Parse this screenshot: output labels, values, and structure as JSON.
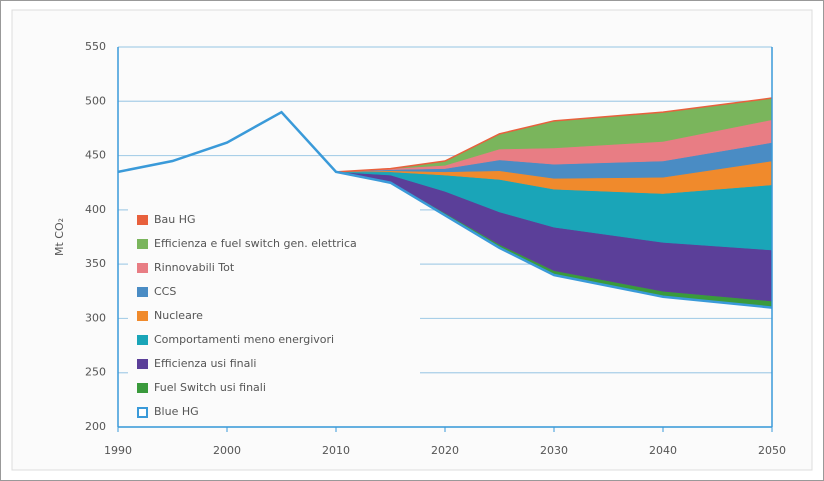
{
  "chart_data": {
    "type": "area",
    "y_label": "Mt CO₂",
    "x": [
      1990,
      1995,
      2000,
      2005,
      2010,
      2015,
      2020,
      2025,
      2030,
      2040,
      2050
    ],
    "xlim": [
      1990,
      2050
    ],
    "xticks": [
      1990,
      2000,
      2010,
      2020,
      2030,
      2040,
      2050
    ],
    "ylim": [
      200,
      550
    ],
    "yticks": [
      200,
      250,
      300,
      350,
      400,
      450,
      500,
      550
    ],
    "grid": true,
    "legend": "lower left",
    "series": [
      {
        "name": "Bau HG",
        "color": "#e8603c",
        "type": "line",
        "values": [
          null,
          null,
          null,
          null,
          435,
          438,
          445,
          470,
          482,
          490,
          503
        ]
      },
      {
        "name": "Efficienza e fuel switch gen. elettrica",
        "color": "#7ab55c",
        "type": "area",
        "values": [
          null,
          null,
          null,
          null,
          0,
          0,
          4,
          14,
          25,
          27,
          20
        ]
      },
      {
        "name": "Rinnovabili Tot",
        "color": "#e87d84",
        "type": "area",
        "values": [
          null,
          null,
          null,
          null,
          0,
          1,
          3,
          10,
          15,
          18,
          21
        ]
      },
      {
        "name": "CCS",
        "color": "#4a8cc4",
        "type": "area",
        "values": [
          null,
          null,
          null,
          null,
          0,
          1,
          3,
          10,
          13,
          15,
          17
        ]
      },
      {
        "name": "Nucleare",
        "color": "#f08a2c",
        "type": "area",
        "values": [
          null,
          null,
          null,
          null,
          0,
          1,
          3,
          8,
          10,
          15,
          22
        ]
      },
      {
        "name": "Comportamenti meno energivori",
        "color": "#1aa5b8",
        "type": "area",
        "values": [
          null,
          null,
          null,
          null,
          0,
          3,
          15,
          30,
          35,
          45,
          60
        ]
      },
      {
        "name": "Efficienza usi finali",
        "color": "#5b3f99",
        "type": "area",
        "values": [
          null,
          null,
          null,
          null,
          0,
          6,
          20,
          30,
          40,
          45,
          47
        ]
      },
      {
        "name": "Fuel Switch usi finali",
        "color": "#3a9a3c",
        "type": "area",
        "values": [
          null,
          null,
          null,
          null,
          0,
          1,
          2,
          3,
          4,
          5,
          6
        ]
      },
      {
        "name": "Blue HG",
        "color": "#3a9ad9",
        "type": "base",
        "values": [
          435,
          445,
          462,
          490,
          435,
          425,
          395,
          365,
          340,
          320,
          310
        ]
      }
    ]
  }
}
